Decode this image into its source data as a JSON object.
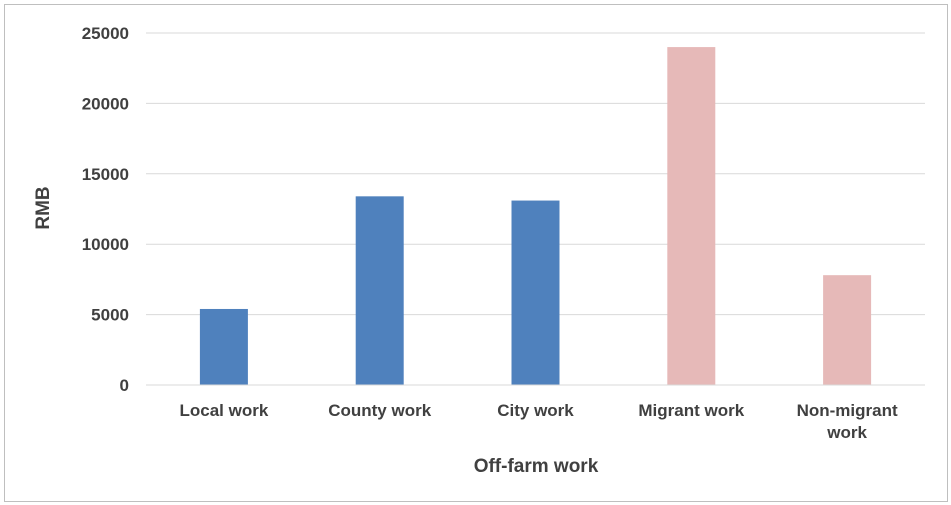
{
  "chart_data": {
    "type": "bar",
    "categories": [
      "Local work",
      "County work",
      "City work",
      "Migrant work",
      "Non-migrant work"
    ],
    "values": [
      5400,
      13400,
      13100,
      24000,
      7800
    ],
    "bar_colors": [
      "#4f81bd",
      "#4f81bd",
      "#4f81bd",
      "#e6b9b8",
      "#e6b9b8"
    ],
    "title": "",
    "xlabel": "Off-farm work",
    "ylabel": "RMB",
    "ylim": [
      0,
      25000
    ],
    "yticks": [
      0,
      5000,
      10000,
      15000,
      20000,
      25000
    ],
    "grid": true,
    "gridline_color": "#d9d9d9",
    "legend": false
  }
}
